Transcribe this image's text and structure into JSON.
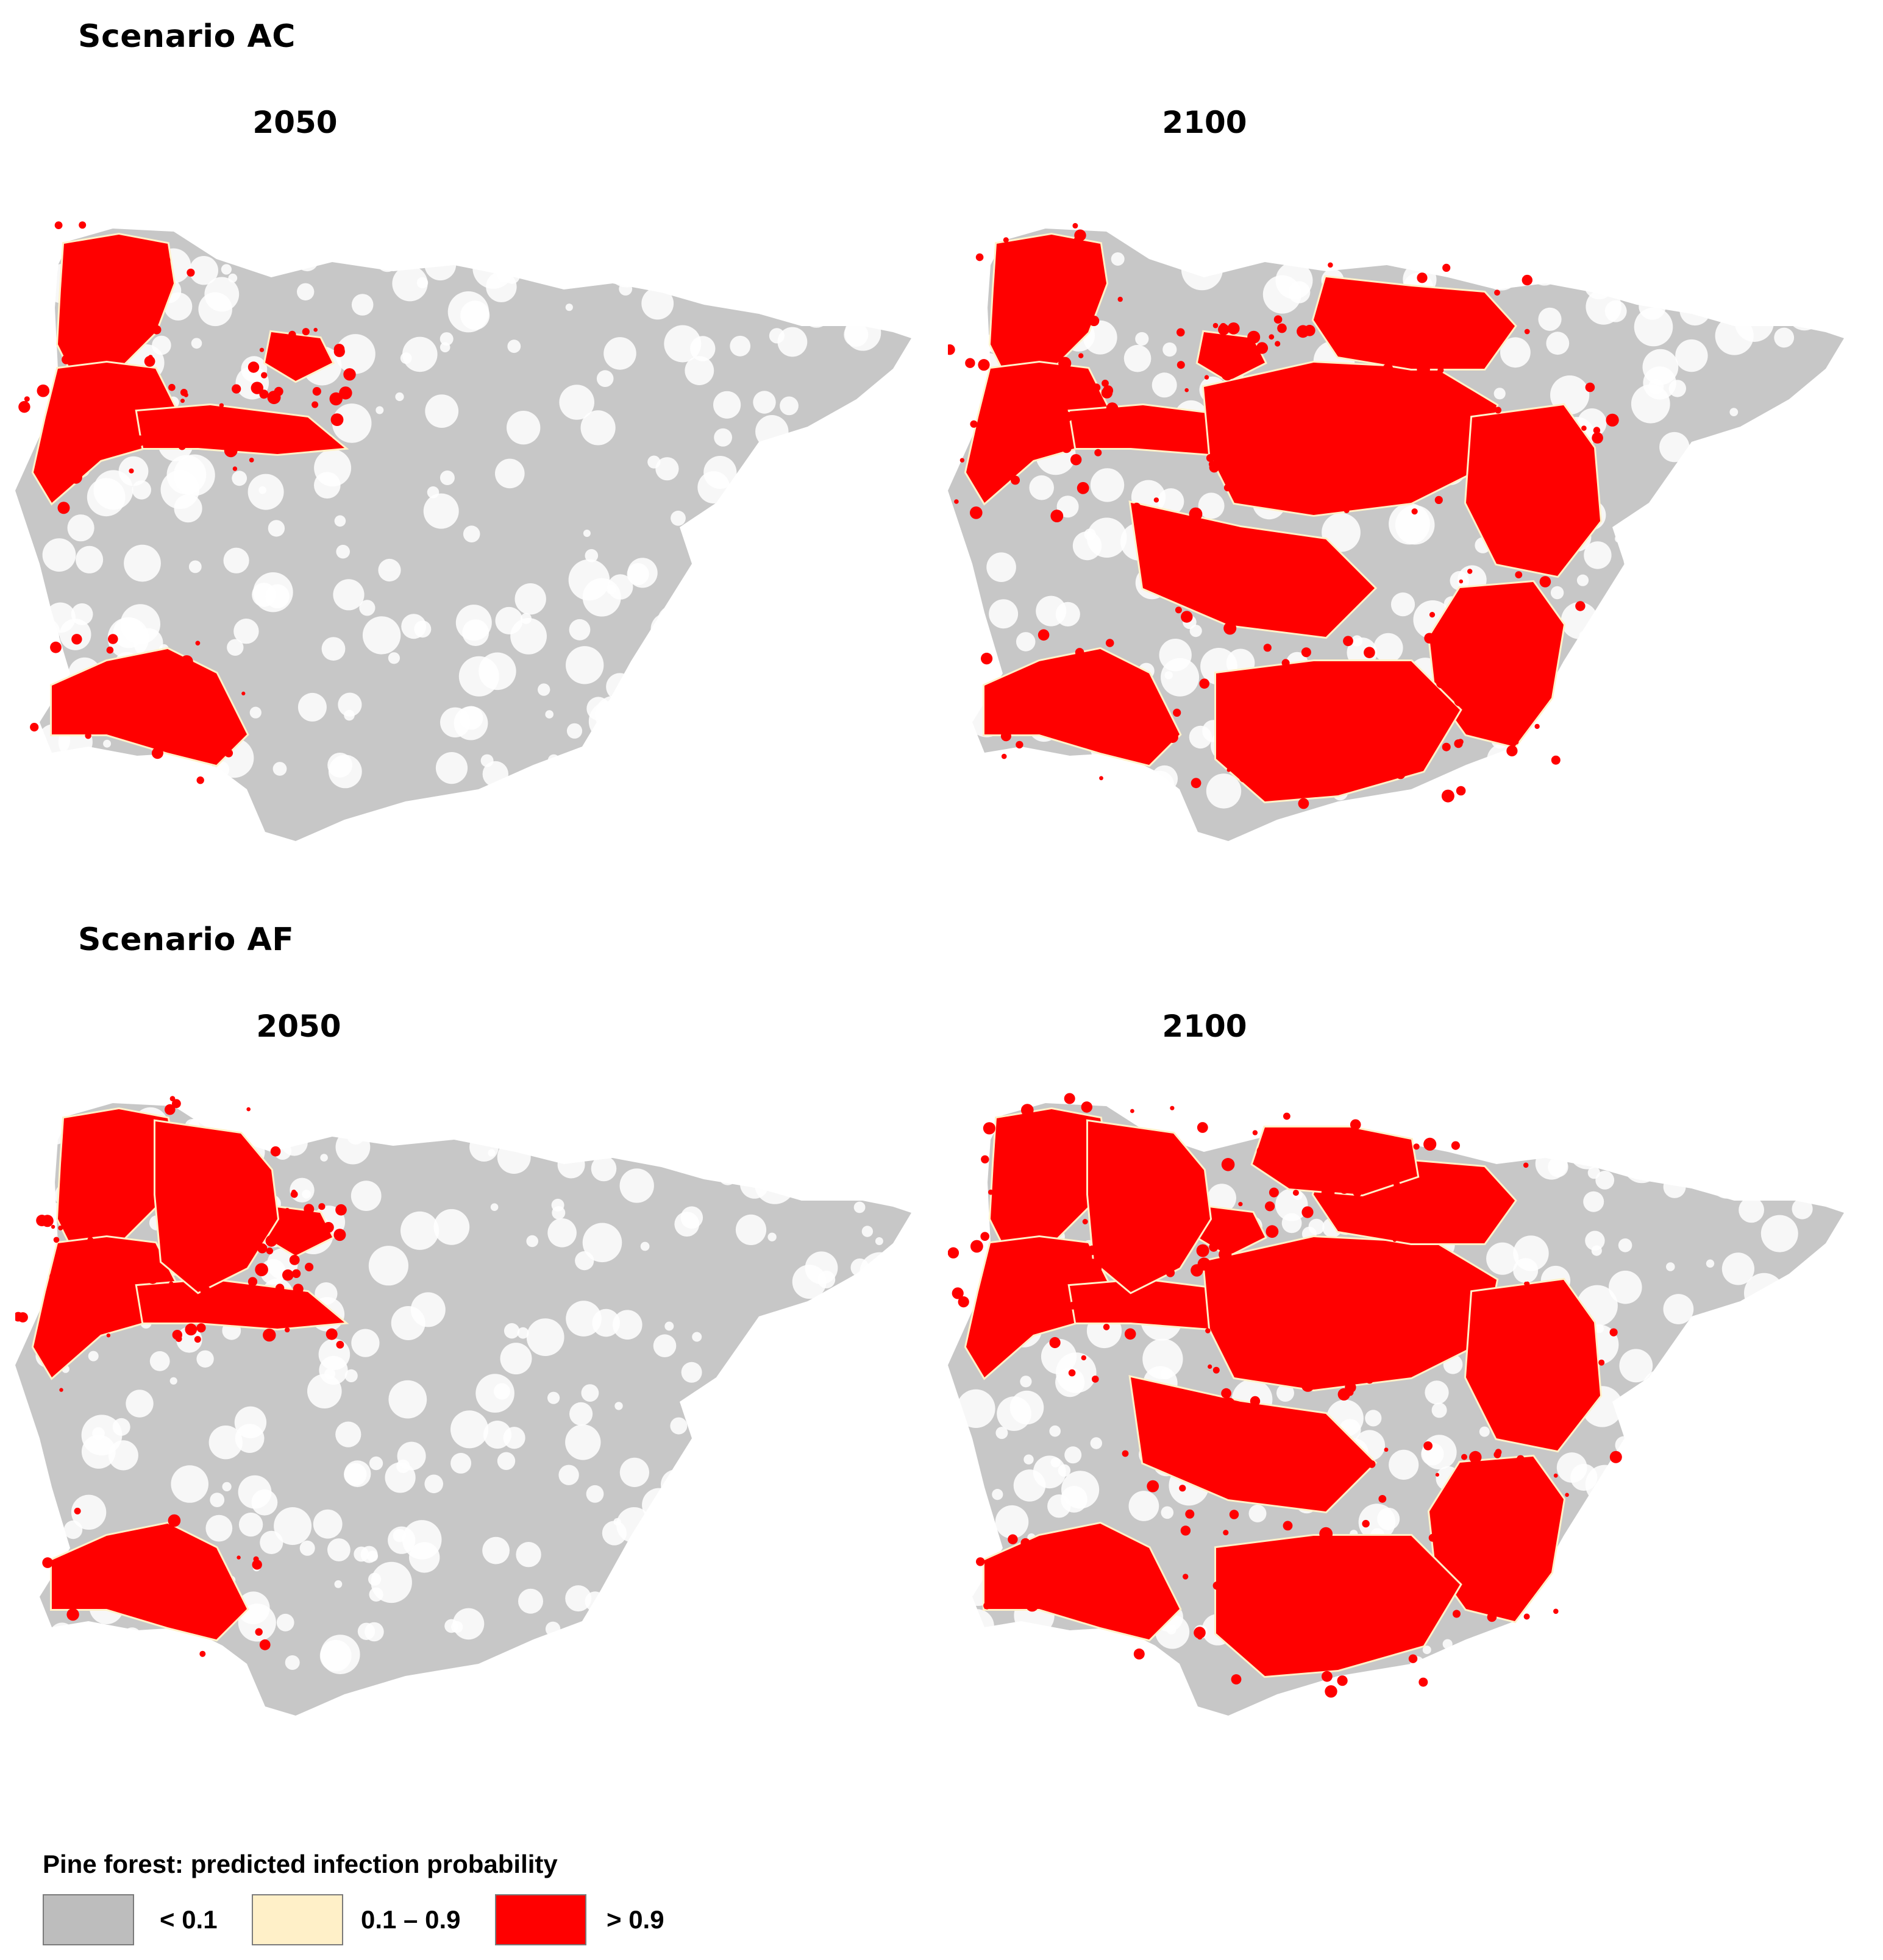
{
  "colors": {
    "low": "#bdbdbd",
    "mid": "#fff0c8",
    "high": "#ff0000",
    "background": "#ffffff"
  },
  "scenarios": [
    {
      "title": "Scenario AC",
      "maps": [
        {
          "year": "2050",
          "affected_regions": [
            "portugal-north",
            "west-centre",
            "minho-corridor",
            "duero-spot",
            "algarve-south"
          ]
        },
        {
          "year": "2100",
          "affected_regions": [
            "portugal-north",
            "west-centre",
            "minho-corridor",
            "duero-spot",
            "algarve-south",
            "central-plateau",
            "north-east-mountains",
            "valencia-east",
            "murcia-south-east",
            "andalusia-south",
            "meseta-scatter"
          ]
        }
      ]
    },
    {
      "title": "Scenario AF",
      "maps": [
        {
          "year": "2050",
          "affected_regions": [
            "portugal-north",
            "west-centre",
            "minho-corridor",
            "duero-spot",
            "algarve-south",
            "galicia-extended"
          ]
        },
        {
          "year": "2100",
          "affected_regions": [
            "portugal-north",
            "west-centre",
            "minho-corridor",
            "duero-spot",
            "algarve-south",
            "galicia-extended",
            "central-plateau",
            "north-east-mountains",
            "valencia-east",
            "murcia-south-east",
            "andalusia-south",
            "meseta-scatter",
            "castile-north"
          ]
        }
      ]
    }
  ],
  "legend": {
    "title": "Pine forest: predicted infection probability",
    "items": [
      {
        "label": "< 0.1",
        "color": "#bdbdbd"
      },
      {
        "label": "0.1 – 0.9",
        "color": "#fff0c8"
      },
      {
        "label": "> 0.9",
        "color": "#ff0000"
      }
    ]
  }
}
